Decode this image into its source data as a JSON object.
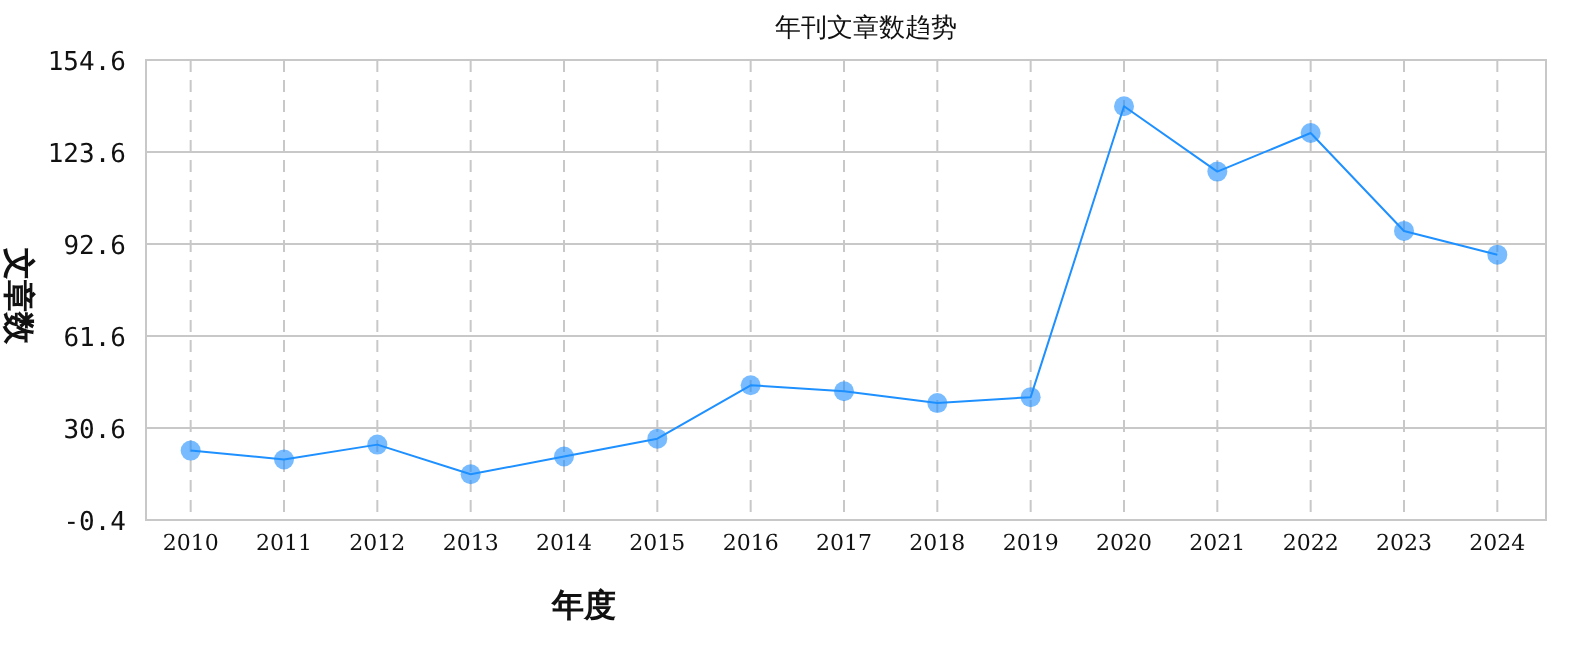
{
  "chart_data": {
    "type": "line",
    "title": "年刊文章数趋势",
    "xlabel": "年度",
    "ylabel": "文章数",
    "categories": [
      "2010",
      "2011",
      "2012",
      "2013",
      "2014",
      "2015",
      "2016",
      "2017",
      "2018",
      "2019",
      "2020",
      "2021",
      "2022",
      "2023",
      "2024"
    ],
    "series": [
      {
        "color": "#1e90ff",
        "values": [
          23,
          20,
          25,
          15,
          21,
          27,
          45,
          43,
          39,
          41,
          139,
          117,
          130,
          97,
          89
        ]
      }
    ],
    "ylim": [
      -0.4,
      154.6
    ],
    "yticks": [
      -0.4,
      30.6,
      61.6,
      92.6,
      123.6,
      154.6
    ],
    "grid": true,
    "marker": "circle",
    "line_style": "solid"
  }
}
